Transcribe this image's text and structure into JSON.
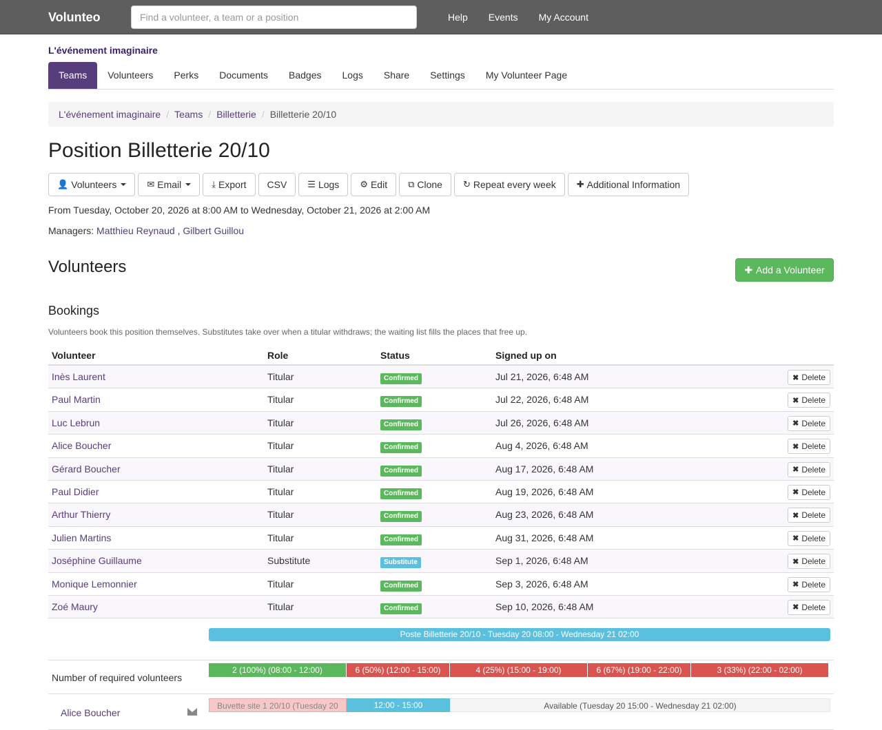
{
  "header": {
    "brand": "Volunteo",
    "search_placeholder": "Find a volunteer, a team or a position",
    "nav": [
      "Help",
      "Events",
      "My Account"
    ]
  },
  "event": {
    "name": "L'événement imaginaire",
    "tabs": [
      "Teams",
      "Volunteers",
      "Perks",
      "Documents",
      "Badges",
      "Logs",
      "Share",
      "Settings",
      "My Volunteer Page"
    ],
    "active_tab": "Teams"
  },
  "breadcrumb": [
    "L'événement imaginaire",
    "Teams",
    "Billetterie",
    "Billetterie 20/10"
  ],
  "position": {
    "title": "Position Billetterie 20/10",
    "actions": {
      "volunteers": "Volunteers",
      "email": "Email",
      "export": "Export",
      "csv": "CSV",
      "logs": "Logs",
      "edit": "Edit",
      "clone": "Clone",
      "repeat": "Repeat every week",
      "additional": "Additional Information"
    },
    "dates": "From Tuesday, October 20, 2026 at 8:00 AM to Wednesday, October 21, 2026 at 2:00 AM",
    "managers_label": "Managers:",
    "managers": [
      "Matthieu Reynaud",
      "Gilbert Guillou"
    ],
    "managers_sep": ","
  },
  "volunteers_section": {
    "heading": "Volunteers",
    "add_button": "Add a Volunteer"
  },
  "bookings": {
    "heading": "Bookings",
    "help": "Volunteers book this position themselves. Substitutes take over when a titular withdraws; the waiting list fills the places that free up.",
    "columns": [
      "Volunteer",
      "Role",
      "Status",
      "Signed up on"
    ],
    "delete_label": "Delete",
    "rows": [
      {
        "name": "Inès Laurent",
        "role": "Titular",
        "status": "Confirmed",
        "date": "Jul 21, 2026, 6:48 AM"
      },
      {
        "name": "Paul Martin",
        "role": "Titular",
        "status": "Confirmed",
        "date": "Jul 22, 2026, 6:48 AM"
      },
      {
        "name": "Luc Lebrun",
        "role": "Titular",
        "status": "Confirmed",
        "date": "Jul 26, 2026, 6:48 AM"
      },
      {
        "name": "Alice Boucher",
        "role": "Titular",
        "status": "Confirmed",
        "date": "Aug 4, 2026, 6:48 AM"
      },
      {
        "name": "Gérard Boucher",
        "role": "Titular",
        "status": "Confirmed",
        "date": "Aug 17, 2026, 6:48 AM"
      },
      {
        "name": "Paul Didier",
        "role": "Titular",
        "status": "Confirmed",
        "date": "Aug 19, 2026, 6:48 AM"
      },
      {
        "name": "Arthur Thierry",
        "role": "Titular",
        "status": "Confirmed",
        "date": "Aug 23, 2026, 6:48 AM"
      },
      {
        "name": "Julien Martins",
        "role": "Titular",
        "status": "Confirmed",
        "date": "Aug 31, 2026, 6:48 AM"
      },
      {
        "name": "Joséphine Guillaume",
        "role": "Substitute",
        "status": "Substitute",
        "date": "Sep 1, 2026, 6:48 AM"
      },
      {
        "name": "Monique Lemonnier",
        "role": "Titular",
        "status": "Confirmed",
        "date": "Sep 3, 2026, 6:48 AM"
      },
      {
        "name": "Zoé Maury",
        "role": "Titular",
        "status": "Confirmed",
        "date": "Sep 10, 2026, 6:48 AM"
      }
    ]
  },
  "timeline": {
    "header": "Poste Billetterie 20/10 - Tuesday 20 08:00 - Wednesday 21 02:00",
    "required_label": "Number of required volunteers",
    "segments": [
      {
        "label": "2 (100%) (08:00 - 12:00)",
        "coverage": 1.0
      },
      {
        "label": "6 (50%) (12:00 - 15:00)",
        "coverage": 0.5
      },
      {
        "label": "4 (25%) (15:00 - 19:00)",
        "coverage": 0.25
      },
      {
        "label": "6 (67%) (19:00 - 22:00)",
        "coverage": 0.67
      },
      {
        "label": "3 (33%) (22:00 - 02:00)",
        "coverage": 0.33
      }
    ],
    "volunteer": {
      "name": "Alice Boucher",
      "other_label": "Buvette site 1 20/10 (Tuesday 20",
      "here_label": "12:00 - 15:00",
      "available_label": "Available (Tuesday 20 15:00 - Wednesday 21 02:00)"
    }
  },
  "colors": {
    "brand_purple": "#563d7c",
    "success": "#5cb85c",
    "danger": "#d9534f",
    "info": "#5bc0de",
    "topbar": "#5e5e5e"
  }
}
